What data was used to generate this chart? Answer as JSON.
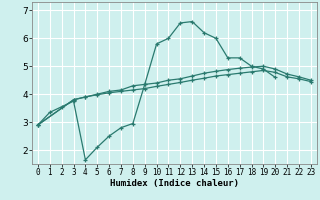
{
  "xlabel": "Humidex (Indice chaleur)",
  "ylabel": "",
  "bg_color": "#cff0ee",
  "grid_color": "#ffffff",
  "line_color": "#2a7a6f",
  "xlim": [
    -0.5,
    23.5
  ],
  "ylim": [
    1.5,
    7.3
  ],
  "yticks": [
    2,
    3,
    4,
    5,
    6,
    7
  ],
  "xticks": [
    0,
    1,
    2,
    3,
    4,
    5,
    6,
    7,
    8,
    9,
    10,
    11,
    12,
    13,
    14,
    15,
    16,
    17,
    18,
    19,
    20,
    21,
    22,
    23
  ],
  "curves": [
    {
      "x": [
        0,
        1,
        2,
        3,
        4,
        5,
        6,
        7,
        8,
        9,
        10,
        11,
        12,
        13,
        14,
        15,
        16,
        17,
        18,
        19,
        20
      ],
      "y": [
        2.9,
        3.35,
        3.55,
        3.75,
        1.65,
        2.1,
        2.5,
        2.8,
        2.95,
        4.35,
        5.8,
        6.0,
        6.55,
        6.6,
        6.2,
        6.0,
        5.3,
        5.3,
        5.0,
        4.9,
        4.6
      ]
    },
    {
      "x": [
        0,
        3,
        4,
        5,
        6,
        7,
        8,
        9,
        10,
        11,
        12,
        13,
        14,
        15,
        16,
        17,
        18,
        19,
        20,
        21,
        22,
        23
      ],
      "y": [
        2.9,
        3.8,
        3.9,
        4.0,
        4.1,
        4.15,
        4.3,
        4.35,
        4.4,
        4.5,
        4.55,
        4.65,
        4.75,
        4.82,
        4.88,
        4.93,
        4.97,
        5.0,
        4.9,
        4.72,
        4.62,
        4.5
      ]
    },
    {
      "x": [
        0,
        3,
        4,
        5,
        6,
        7,
        8,
        9,
        10,
        11,
        12,
        13,
        14,
        15,
        16,
        17,
        18,
        19,
        20,
        21,
        22,
        23
      ],
      "y": [
        2.9,
        3.8,
        3.9,
        3.98,
        4.05,
        4.1,
        4.15,
        4.2,
        4.28,
        4.35,
        4.42,
        4.5,
        4.57,
        4.65,
        4.7,
        4.75,
        4.8,
        4.85,
        4.78,
        4.62,
        4.55,
        4.45
      ]
    }
  ]
}
